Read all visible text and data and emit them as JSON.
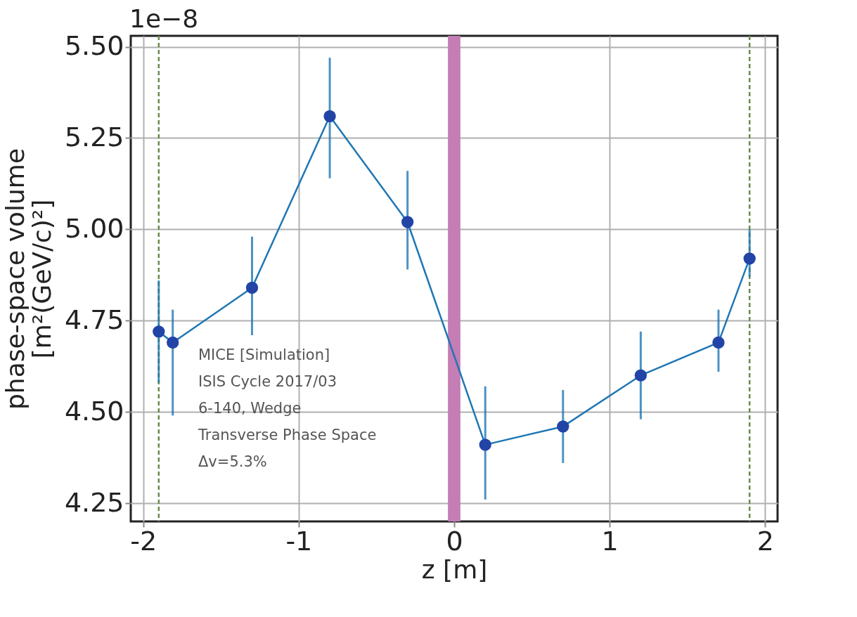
{
  "chart_data": {
    "type": "line",
    "xlabel": "z [m]",
    "ylabel": "phase-space volume\n[m²(GeV/c)²]",
    "annotations": [
      "1e−8",
      "MICE [Simulation]",
      "ISIS Cycle 2017/03",
      "6-140, Wedge",
      "Transverse Phase Space",
      "Δv=5.3%"
    ],
    "x": [
      -1.9,
      -1.81,
      -1.3,
      -0.8,
      -0.3,
      0.2,
      0.7,
      1.2,
      1.7,
      1.9
    ],
    "series": [
      {
        "color": "#1f77b4",
        "values": [
          4.72,
          4.69,
          4.84,
          5.31,
          5.02,
          4.41,
          4.46,
          4.6,
          4.69,
          4.92
        ],
        "errors": [
          [
            4.58,
            4.86
          ],
          [
            4.49,
            4.78
          ],
          [
            4.71,
            4.98
          ],
          [
            5.14,
            5.47
          ],
          [
            4.89,
            5.16
          ],
          [
            4.26,
            4.57
          ],
          [
            4.36,
            4.56
          ],
          [
            4.48,
            4.72
          ],
          [
            4.61,
            4.78
          ],
          [
            4.87,
            5.0
          ]
        ]
      }
    ],
    "marker": "circle",
    "line_style": "solid",
    "grid": true,
    "xlim": [
      -2.08,
      2.08
    ],
    "xticks": [
      -2,
      -1,
      0,
      1,
      2
    ],
    "ylim": [
      4.2,
      5.53
    ],
    "yticks": [
      {
        "value": 4.25,
        "label": "4.25"
      },
      {
        "value": 4.5,
        "label": "4.50"
      },
      {
        "value": 4.75,
        "label": "4.75"
      },
      {
        "value": 5,
        "label": "5.00"
      },
      {
        "value": 5.25,
        "label": "5.25"
      },
      {
        "value": 5.5,
        "label": "5.50"
      }
    ],
    "ref_lines": [
      {
        "axis": "x",
        "value": -1.9,
        "color": "#6b8a4e",
        "line_style": "dashed"
      },
      {
        "axis": "x",
        "value": 1.9,
        "color": "#6b8a4e",
        "line_style": "dashed"
      }
    ],
    "bands": [
      {
        "axis": "x",
        "from": -0.04,
        "to": 0.04,
        "color": "#c47db5"
      }
    ]
  }
}
